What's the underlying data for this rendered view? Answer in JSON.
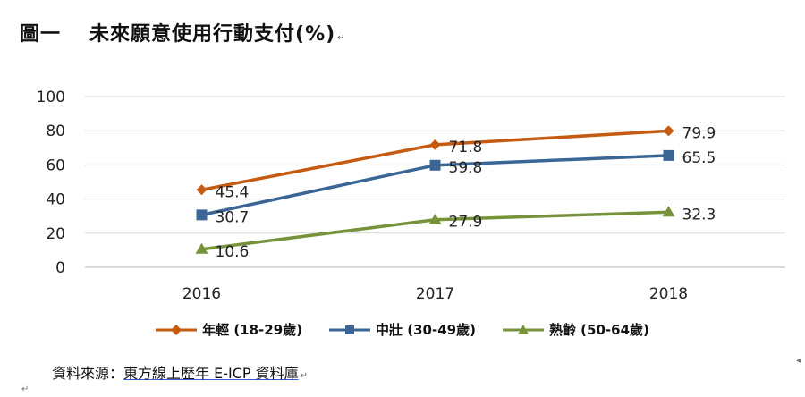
{
  "title": {
    "figure_no": "圖一",
    "text": "未來願意使用行動支付(%)"
  },
  "chart_data": {
    "type": "line",
    "categories": [
      "2016",
      "2017",
      "2018"
    ],
    "ylim": [
      0,
      100
    ],
    "yticks": [
      0,
      20,
      40,
      60,
      80,
      100
    ],
    "grid": true,
    "legend_position": "bottom",
    "series": [
      {
        "name": "年輕 (18-29歲)",
        "values": [
          45.4,
          71.8,
          79.9
        ],
        "color": "#C55A11",
        "marker": "diamond"
      },
      {
        "name": "中壯 (30-49歲)",
        "values": [
          30.7,
          59.8,
          65.5
        ],
        "color": "#3A6595",
        "marker": "square"
      },
      {
        "name": "熟齡 (50-64歲)",
        "values": [
          10.6,
          27.9,
          32.3
        ],
        "color": "#76933C",
        "marker": "triangle"
      }
    ]
  },
  "source": {
    "prefix": "資料來源：",
    "text": "東方線上歷年 E-ICP 資料庫"
  },
  "edit_mark": "↵"
}
